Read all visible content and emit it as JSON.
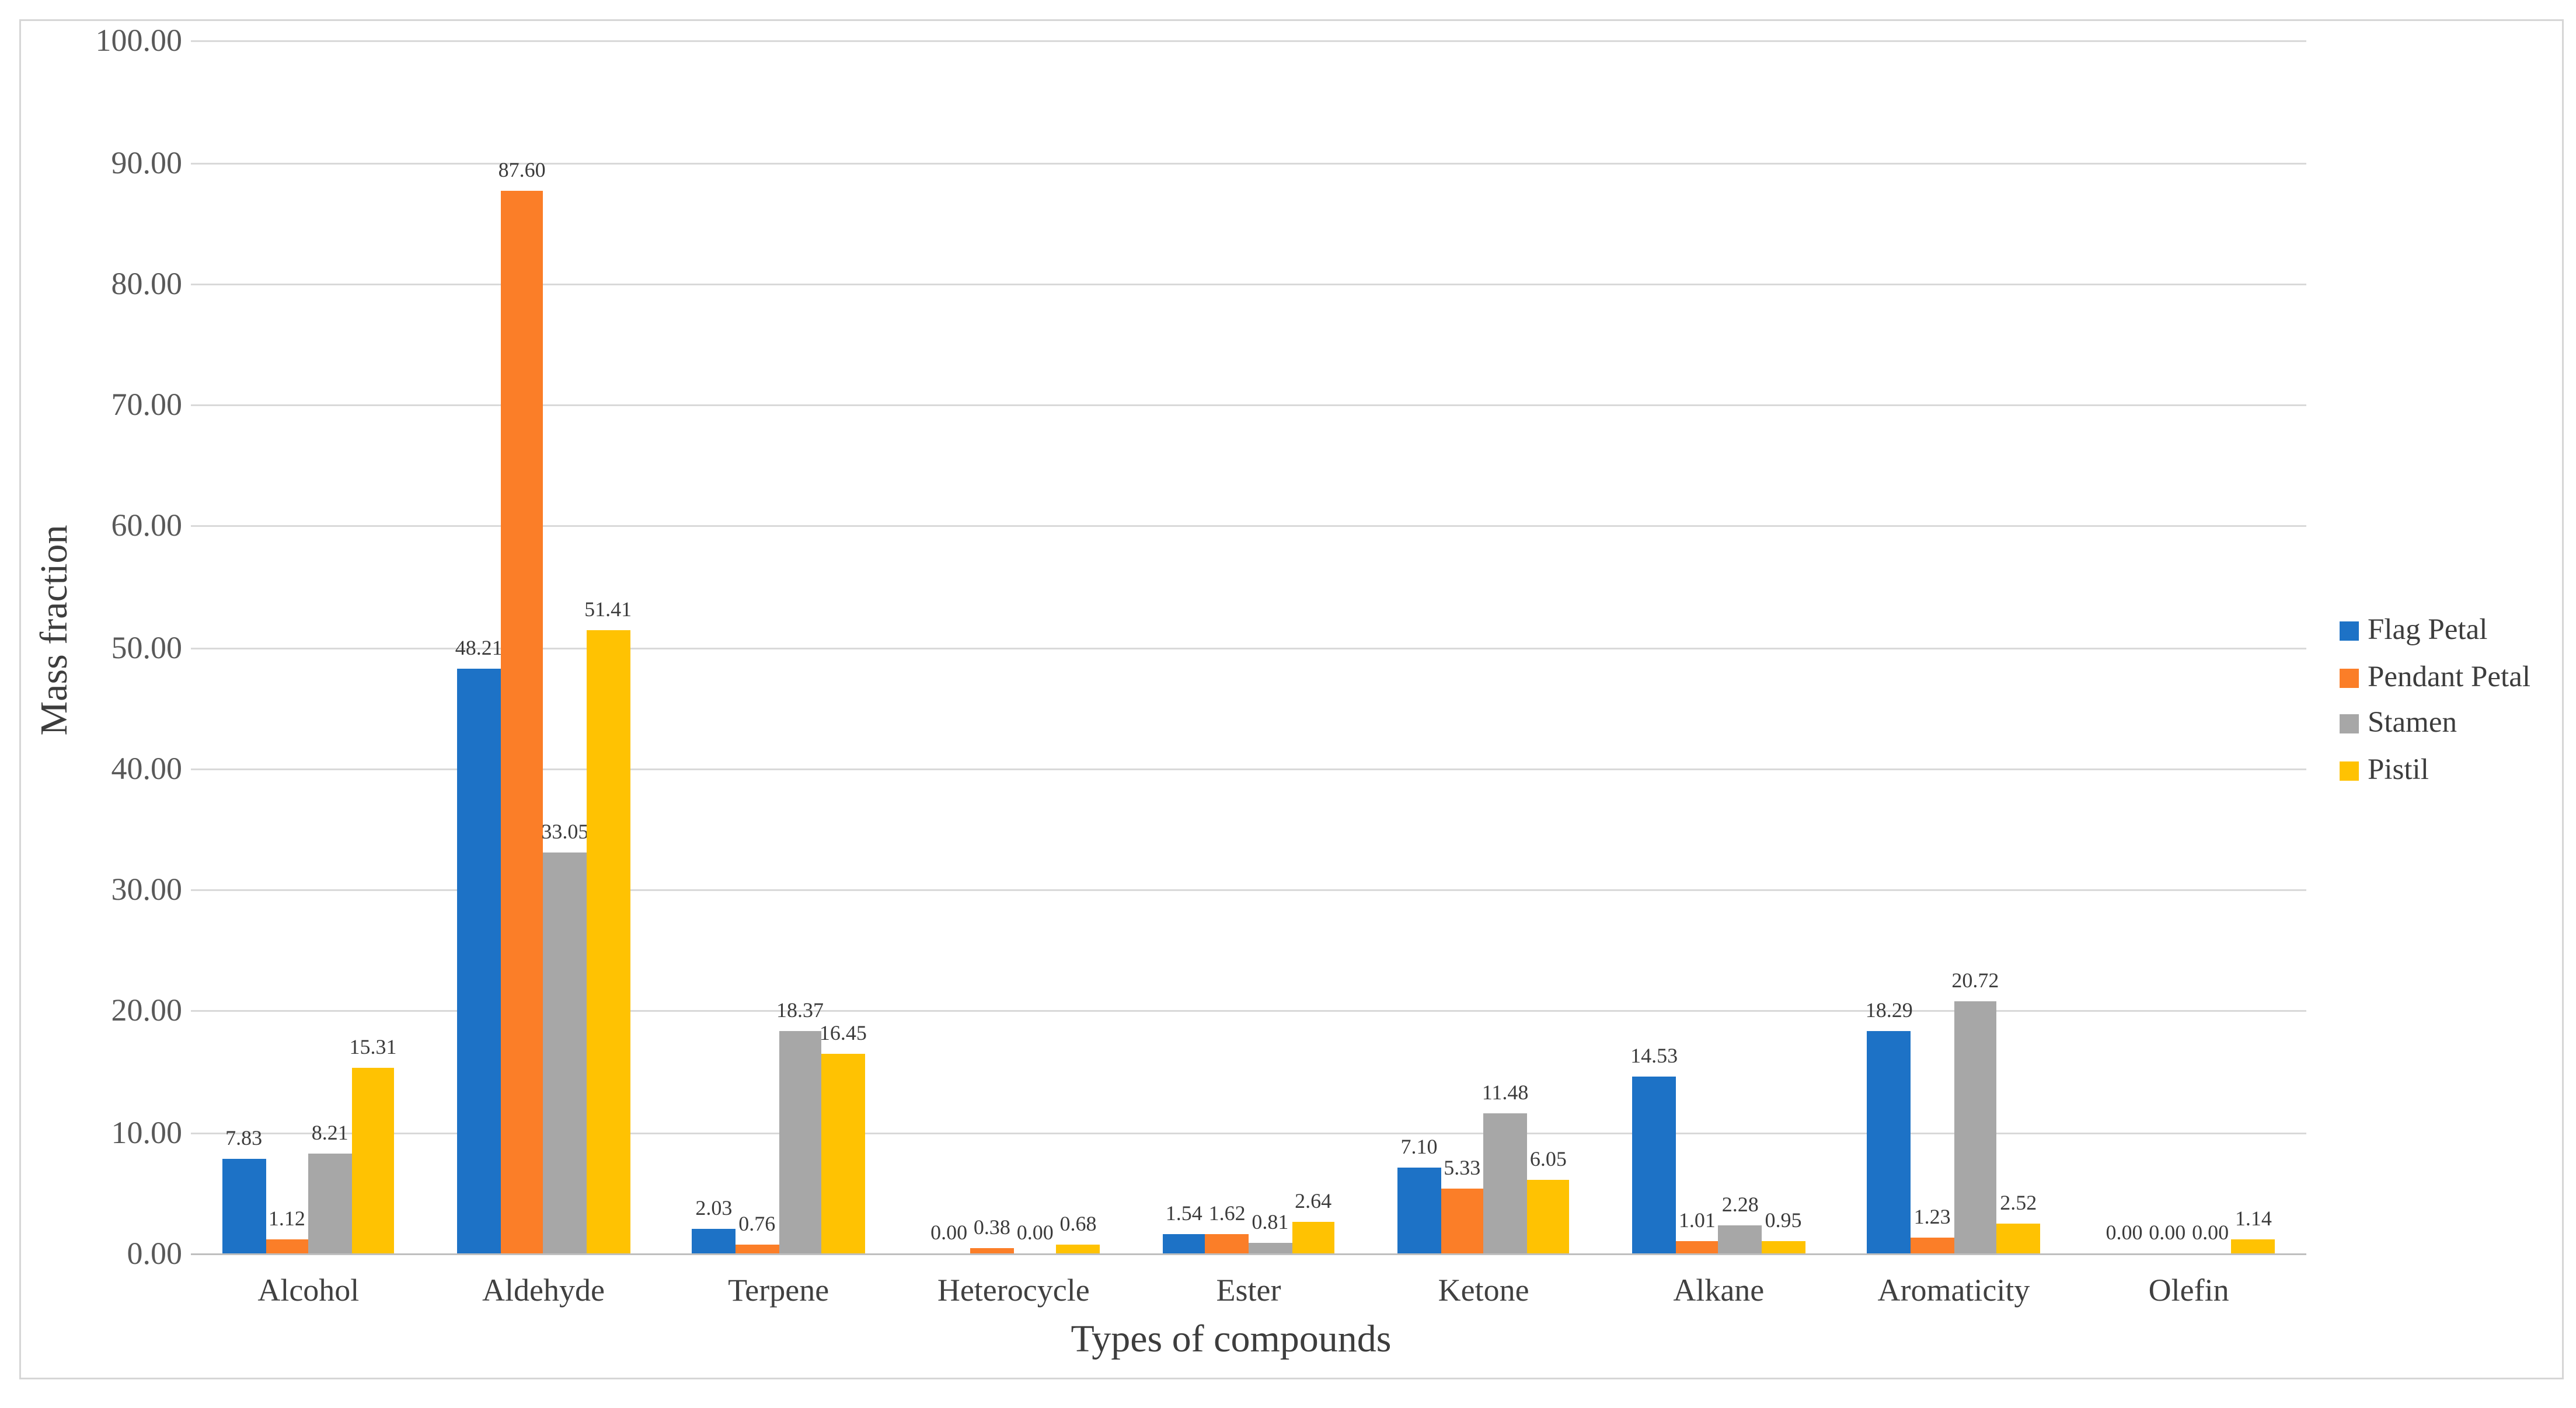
{
  "chart_data": {
    "type": "bar",
    "title": "",
    "xlabel": "Types of compounds",
    "ylabel": "Mass fraction",
    "categories": [
      "Alcohol",
      "Aldehyde",
      "Terpene",
      "Heterocycle",
      "Ester",
      "Ketone",
      "Alkane",
      "Aromaticity",
      "Olefin"
    ],
    "series": [
      {
        "name": "Flag Petal",
        "color": "#1D72C6",
        "values": [
          7.83,
          48.21,
          2.03,
          0.0,
          1.54,
          7.1,
          14.53,
          18.29,
          0.0
        ]
      },
      {
        "name": "Pendant Petal",
        "color": "#FB7E28",
        "values": [
          1.12,
          87.6,
          0.76,
          0.38,
          1.62,
          5.33,
          1.01,
          1.23,
          0.0
        ]
      },
      {
        "name": "Stamen",
        "color": "#A7A7A7",
        "values": [
          8.21,
          33.05,
          18.37,
          0.0,
          0.81,
          11.48,
          2.28,
          20.72,
          0.0
        ]
      },
      {
        "name": "Pistil",
        "color": "#FFC202",
        "values": [
          15.31,
          51.41,
          16.45,
          0.68,
          2.64,
          6.05,
          0.95,
          2.52,
          1.14
        ]
      }
    ],
    "ylim": [
      0,
      100
    ],
    "ytick_step": 10,
    "ytick_labels": [
      "0.00",
      "10.00",
      "20.00",
      "30.00",
      "40.00",
      "50.00",
      "60.00",
      "70.00",
      "80.00",
      "90.00",
      "100.00"
    ],
    "value_label_decimals": 2,
    "grid": true,
    "legend_position": "right",
    "colors": {
      "gridline": "#d9d9d9",
      "axis_line": "#bfbfbf",
      "tick_text": "#595959",
      "category_text": "#404040",
      "axis_title_text": "#3d3d3d",
      "value_label_text": "#3b3b3b",
      "legend_text": "#3d3d3d",
      "background": "#ffffff"
    }
  }
}
